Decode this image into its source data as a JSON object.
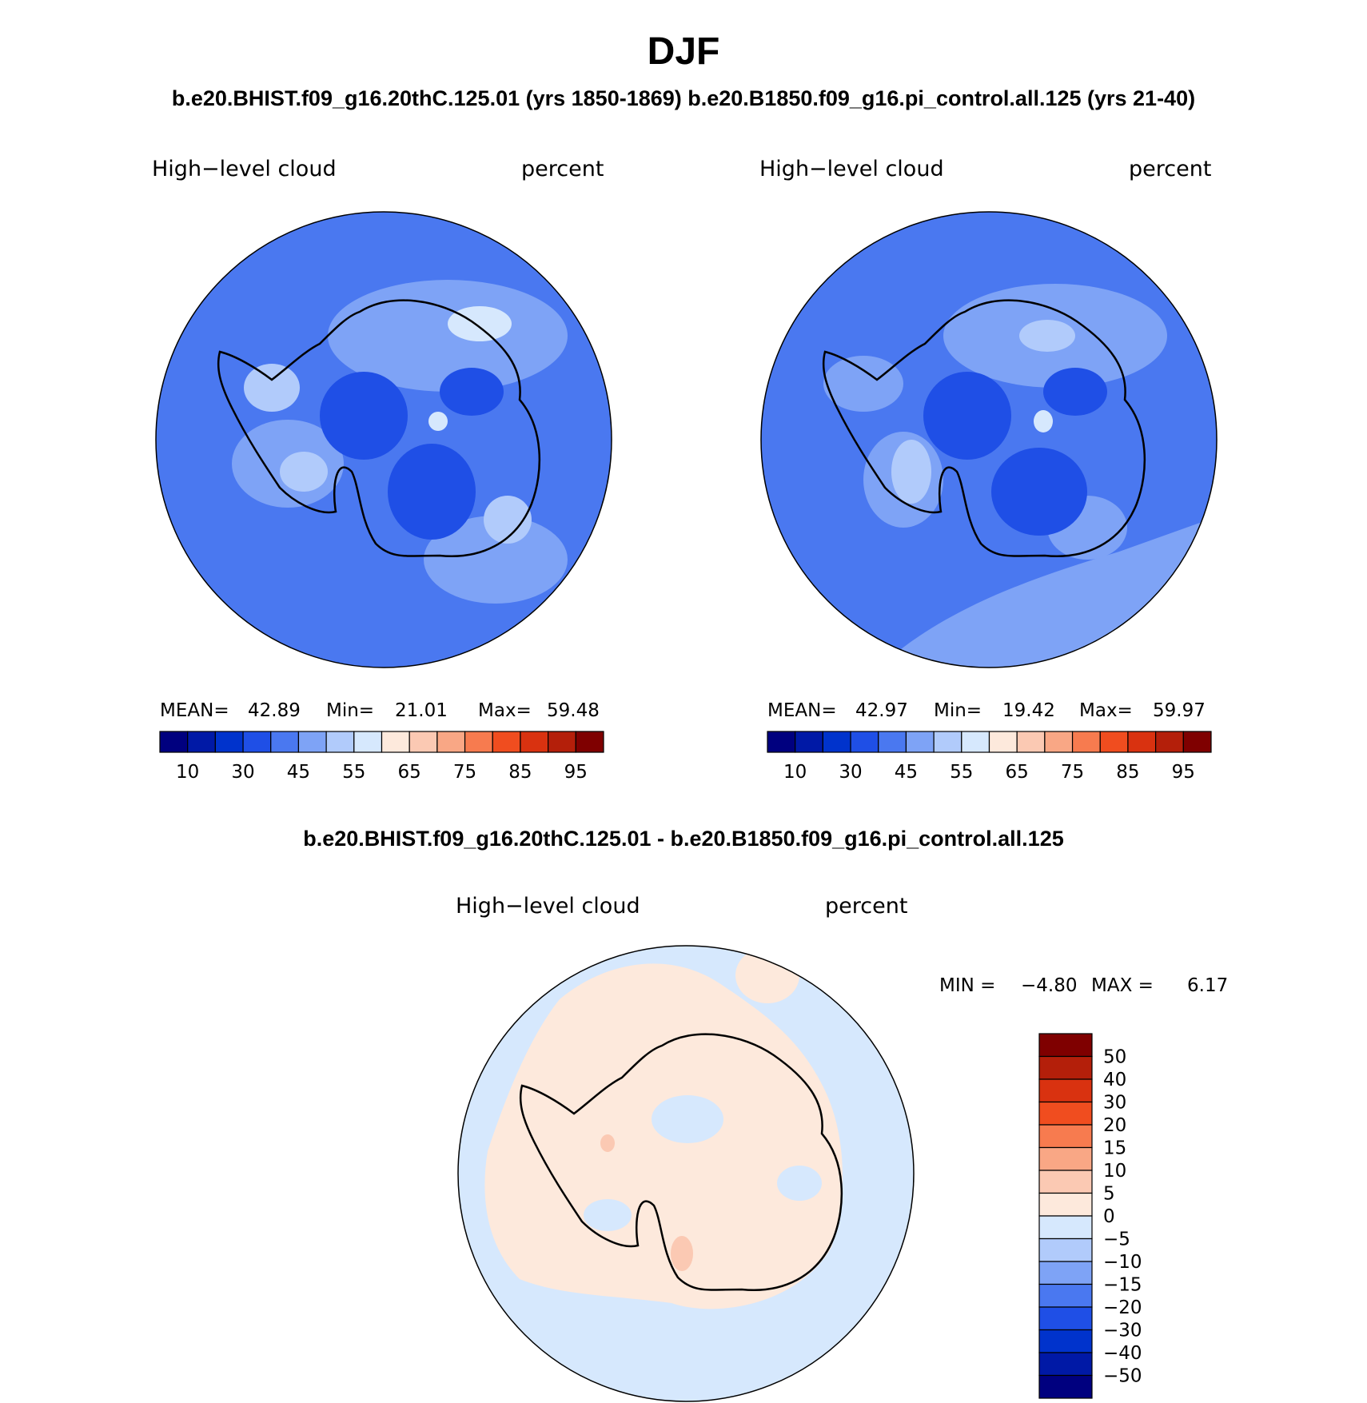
{
  "title": "DJF",
  "case_header": "b.e20.BHIST.f09_g16.20thC.125.01 (yrs 1850-1869)  b.e20.B1850.f09_g16.pi_control.all.125 (yrs 21-40)",
  "diff_header": "b.e20.BHIST.f09_g16.20thC.125.01 - b.e20.B1850.f09_g16.pi_control.all.125",
  "colors": {
    "abs_scale": [
      "#00007f",
      "#0019a6",
      "#0033cc",
      "#1f4fe6",
      "#4a78f0",
      "#7ea3f6",
      "#b1cbfb",
      "#d6e8fd",
      "#fde9dc",
      "#fbc9b3",
      "#f9a785",
      "#f77b4f",
      "#f04d1f",
      "#d93210",
      "#b41f0a",
      "#7f0000"
    ],
    "diff_scale": [
      "#00007f",
      "#0019a6",
      "#0033cc",
      "#1f4fe6",
      "#4a78f0",
      "#7ea3f6",
      "#b1cbfb",
      "#d6e8fd",
      "#fde9dc",
      "#fbc9b3",
      "#f9a785",
      "#f77b4f",
      "#f04d1f",
      "#d93210",
      "#b41f0a",
      "#7f0000"
    ],
    "land_line": "#000000"
  },
  "chart_data": [
    {
      "type": "heatmap",
      "projection": "south-polar-stereographic",
      "variable": "High−level cloud",
      "units": "percent",
      "stats": {
        "mean_label": "MEAN=",
        "mean": "42.89",
        "min_label": "Min=",
        "min": "21.01",
        "max_label": "Max=",
        "max": "59.48"
      },
      "colorbar": {
        "orientation": "horizontal",
        "levels": [
          5,
          10,
          15,
          20,
          25,
          30,
          35,
          40,
          45,
          50,
          55,
          60,
          65,
          70,
          75,
          80,
          85,
          90,
          95
        ],
        "tick_labels": [
          "10",
          "30",
          "45",
          "55",
          "65",
          "75",
          "85",
          "95"
        ]
      },
      "dominant_range": [
        30,
        45
      ]
    },
    {
      "type": "heatmap",
      "projection": "south-polar-stereographic",
      "variable": "High−level cloud",
      "units": "percent",
      "stats": {
        "mean_label": "MEAN=",
        "mean": "42.97",
        "min_label": "Min=",
        "min": "19.42",
        "max_label": "Max=",
        "max": "59.97"
      },
      "colorbar": {
        "orientation": "horizontal",
        "levels": [
          5,
          10,
          15,
          20,
          25,
          30,
          35,
          40,
          45,
          50,
          55,
          60,
          65,
          70,
          75,
          80,
          85,
          90,
          95
        ],
        "tick_labels": [
          "10",
          "30",
          "45",
          "55",
          "65",
          "75",
          "85",
          "95"
        ]
      },
      "dominant_range": [
        30,
        45
      ]
    },
    {
      "type": "heatmap",
      "projection": "south-polar-stereographic",
      "variable": "High−level cloud",
      "units": "percent",
      "stats": {
        "min_label": "MIN =",
        "min": "−4.80",
        "max_label": "MAX =",
        "max": "6.17"
      },
      "colorbar": {
        "orientation": "vertical",
        "levels": [
          -50,
          -40,
          -30,
          -20,
          -15,
          -10,
          -5,
          0,
          5,
          10,
          15,
          20,
          30,
          40,
          50
        ],
        "tick_labels": [
          "50",
          "40",
          "30",
          "20",
          "15",
          "10",
          "5",
          "0",
          "−5",
          "−10",
          "−15",
          "−20",
          "−30",
          "−40",
          "−50"
        ]
      },
      "dominant_range": [
        -5,
        5
      ]
    }
  ]
}
